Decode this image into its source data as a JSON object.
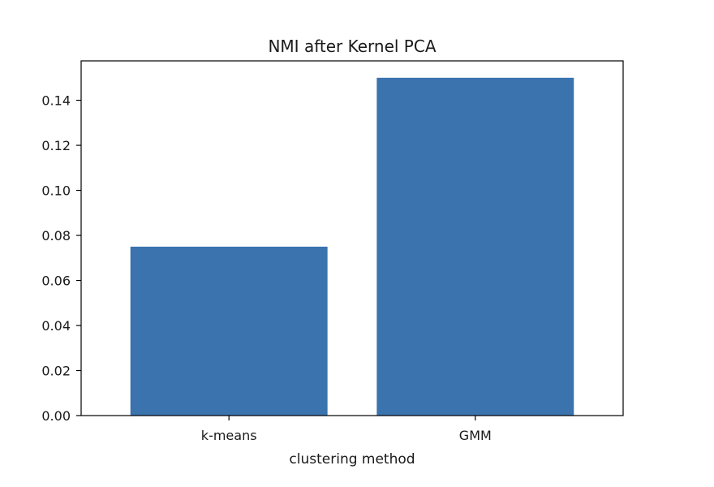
{
  "chart_data": {
    "type": "bar",
    "title": "NMI after Kernel PCA",
    "xlabel": "clustering method",
    "ylabel": "",
    "categories": [
      "k-means",
      "GMM"
    ],
    "values": [
      0.075,
      0.15
    ],
    "ylim": [
      0,
      0.1575
    ],
    "yticks": [
      0.0,
      0.02,
      0.04,
      0.06,
      0.08,
      0.1,
      0.12,
      0.14
    ],
    "ytick_labels": [
      "0.00",
      "0.02",
      "0.04",
      "0.06",
      "0.08",
      "0.10",
      "0.12",
      "0.14"
    ],
    "bar_color": "#3a73ae",
    "grid": false,
    "legend": "none"
  }
}
